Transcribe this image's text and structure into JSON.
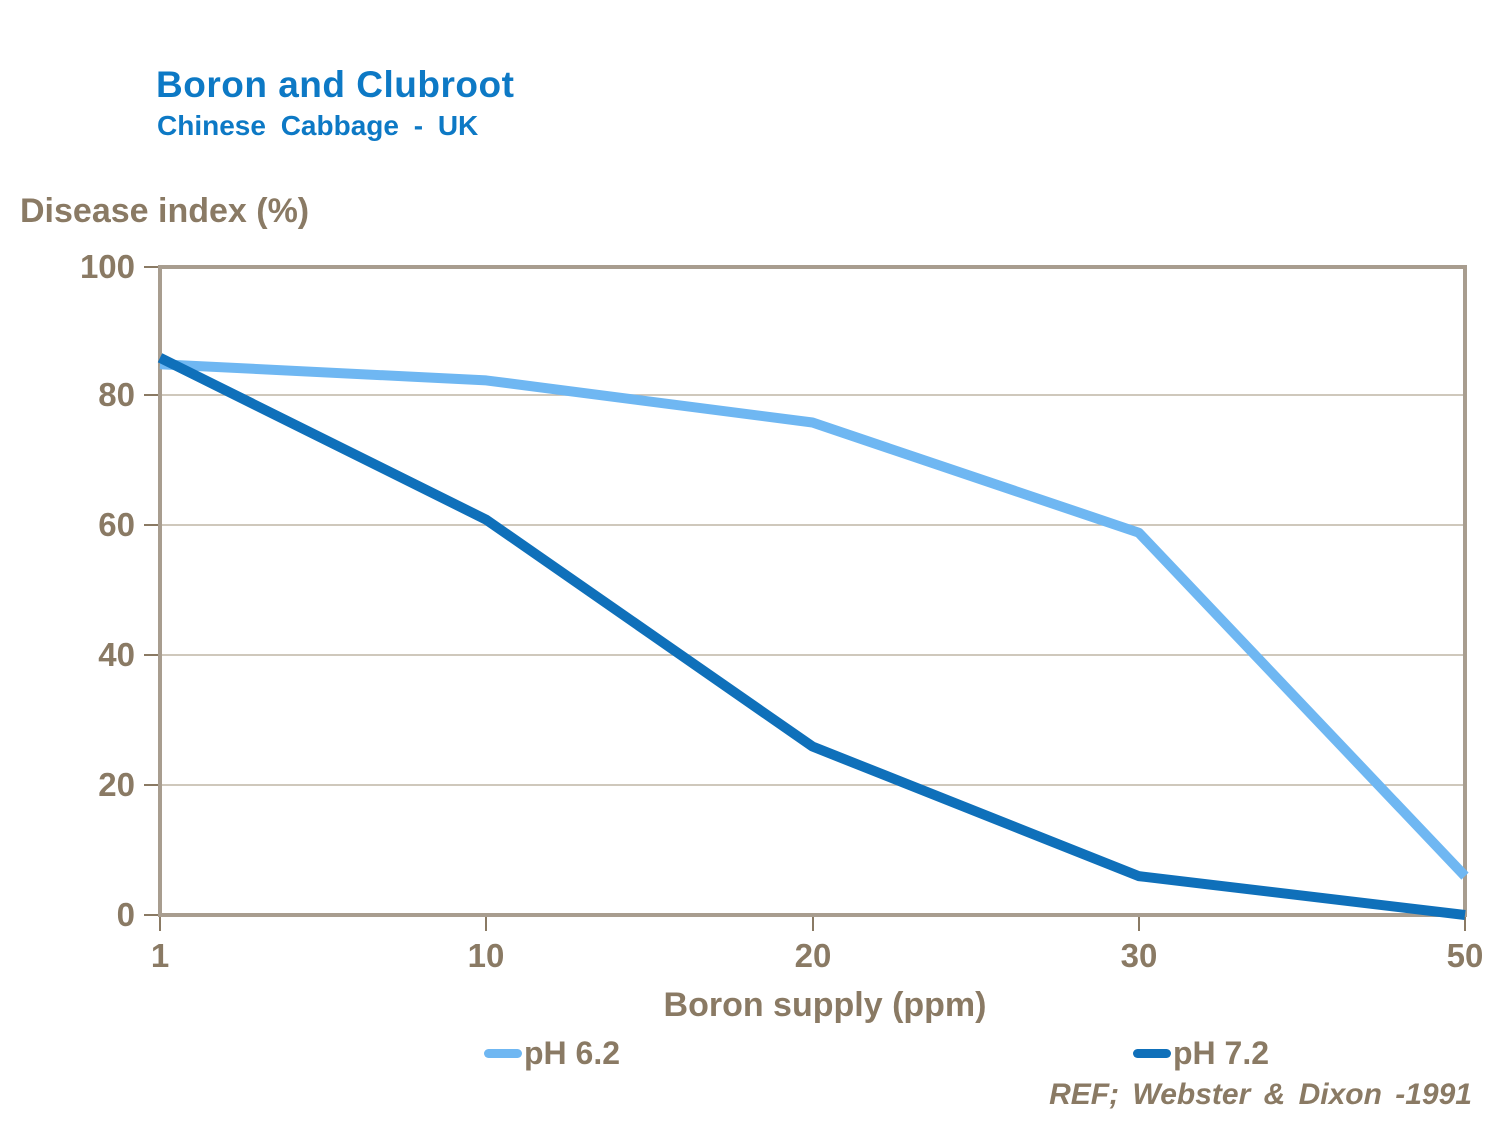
{
  "header": {
    "title": "Boron and Clubroot",
    "subtitle": "Chinese Cabbage - UK"
  },
  "chart_data": {
    "type": "line",
    "title": "Boron and Clubroot",
    "subtitle": "Chinese Cabbage - UK",
    "x": [
      1,
      10,
      20,
      30,
      50
    ],
    "x_axis_type": "category-equal-spacing",
    "series": [
      {
        "name": "pH 6.2",
        "color": "#6fb7f2",
        "values": [
          85,
          82.5,
          76,
          59,
          6
        ]
      },
      {
        "name": "pH 7.2",
        "color": "#0f70ba",
        "values": [
          86,
          61,
          26,
          6,
          0
        ]
      }
    ],
    "xlabel": "Boron supply (ppm)",
    "ylabel": "Disease index (%)",
    "ylim": [
      0,
      100
    ],
    "y_ticks": [
      100,
      80,
      60,
      40,
      20,
      0
    ],
    "x_ticks": [
      1,
      10,
      20,
      30,
      50
    ],
    "grid": "horizontal",
    "legend_position": "bottom",
    "reference": "REF; Webster & Dixon -1991"
  },
  "colors": {
    "title_blue": "#0d79c5",
    "axis_text_brown": "#8a7a64",
    "axis_border": "#a89d8f",
    "gridline": "#bfb5a6",
    "series_ph62": "#6fb7f2",
    "series_ph72": "#0f70ba"
  }
}
